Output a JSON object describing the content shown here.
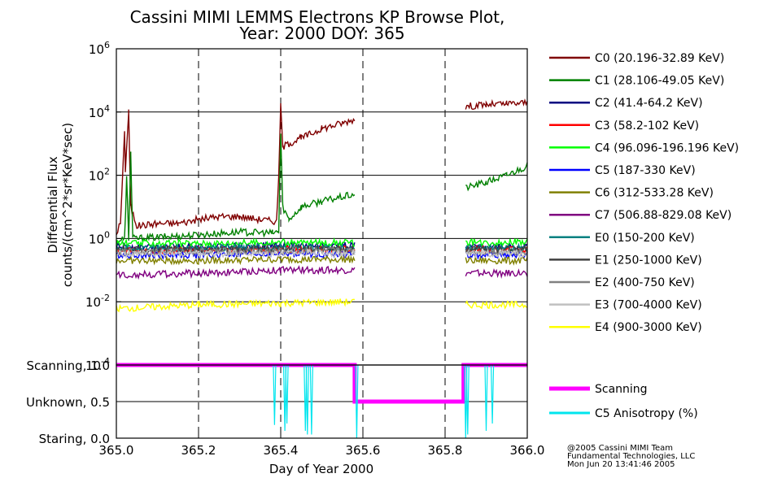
{
  "chart_data": {
    "type": "line",
    "title_line1": "Cassini MIMI LEMMS Electrons KP Browse Plot,",
    "title_line2": "Year: 2000 DOY: 365",
    "xlabel": "Day of Year 2000",
    "ylabel_line1": "Differential Flux",
    "ylabel_line2": "counts/(cm^2*sr*KeV*sec)",
    "xlim": [
      365.0,
      366.0
    ],
    "x_ticks": [
      "365.0",
      "365.2",
      "365.4",
      "365.6",
      "365.8",
      "366.0"
    ],
    "x_tick_values": [
      365.0,
      365.2,
      365.4,
      365.6,
      365.8,
      366.0
    ],
    "log_scale_y": true,
    "ylim": [
      0.0001,
      1000000
    ],
    "y_tick_exponents": [
      "6",
      "4",
      "2",
      "0",
      "-2",
      "-4"
    ],
    "y_tick_values": [
      1000000,
      10000,
      100,
      1,
      0.01,
      0.0001
    ],
    "data_gaps": [
      [
        365.585,
        365.85
      ]
    ],
    "legend_position": "right",
    "series": [
      {
        "name": "C0 (20.196-32.89 KeV)",
        "color": "#800000",
        "points": [
          [
            365.0,
            1.5
          ],
          [
            365.01,
            3
          ],
          [
            365.02,
            2000
          ],
          [
            365.022,
            150
          ],
          [
            365.03,
            10000
          ],
          [
            365.035,
            10
          ],
          [
            365.05,
            2.5
          ],
          [
            365.1,
            3
          ],
          [
            365.15,
            3
          ],
          [
            365.2,
            4
          ],
          [
            365.25,
            5
          ],
          [
            365.3,
            5
          ],
          [
            365.35,
            4
          ],
          [
            365.39,
            3.5
          ],
          [
            365.395,
            100
          ],
          [
            365.4,
            15000
          ],
          [
            365.405,
            800
          ],
          [
            365.42,
            1000
          ],
          [
            365.45,
            1500
          ],
          [
            365.5,
            3000
          ],
          [
            365.55,
            4500
          ],
          [
            365.58,
            6000
          ],
          [
            365.85,
            15000
          ],
          [
            365.9,
            17000
          ],
          [
            365.95,
            18000
          ],
          [
            366.0,
            20000
          ]
        ]
      },
      {
        "name": "C1 (28.106-49.05 KeV)",
        "color": "#008000",
        "points": [
          [
            365.0,
            0.8
          ],
          [
            365.02,
            1
          ],
          [
            365.025,
            80
          ],
          [
            365.03,
            1
          ],
          [
            365.035,
            500
          ],
          [
            365.04,
            1
          ],
          [
            365.1,
            1.1
          ],
          [
            365.2,
            1.3
          ],
          [
            365.3,
            1.6
          ],
          [
            365.38,
            1.5
          ],
          [
            365.395,
            1.6
          ],
          [
            365.4,
            2000
          ],
          [
            365.405,
            10
          ],
          [
            365.42,
            4
          ],
          [
            365.45,
            10
          ],
          [
            365.5,
            15
          ],
          [
            365.58,
            25
          ],
          [
            365.85,
            40
          ],
          [
            365.9,
            60
          ],
          [
            365.95,
            100
          ],
          [
            366.0,
            200
          ]
        ]
      },
      {
        "name": "C2 (41.4-64.2 KeV)",
        "color": "#000080",
        "points": [
          [
            365.0,
            0.55
          ],
          [
            365.2,
            0.55
          ],
          [
            365.4,
            0.6
          ],
          [
            365.58,
            0.6
          ],
          [
            365.85,
            0.55
          ],
          [
            366.0,
            0.55
          ]
        ]
      },
      {
        "name": "C3 (58.2-102 KeV)",
        "color": "#ff0000",
        "points": [
          [
            365.0,
            0.4
          ],
          [
            365.2,
            0.42
          ],
          [
            365.4,
            0.45
          ],
          [
            365.58,
            0.45
          ],
          [
            365.85,
            0.45
          ],
          [
            366.0,
            0.45
          ]
        ]
      },
      {
        "name": "C4 (96.096-196.196 KeV)",
        "color": "#00ff00",
        "points": [
          [
            365.0,
            0.7
          ],
          [
            365.2,
            0.7
          ],
          [
            365.4,
            0.75
          ],
          [
            365.58,
            0.72
          ],
          [
            365.85,
            0.75
          ],
          [
            366.0,
            0.78
          ]
        ]
      },
      {
        "name": "C5 (187-330 KeV)",
        "color": "#0000ff",
        "points": [
          [
            365.0,
            0.3
          ],
          [
            365.2,
            0.3
          ],
          [
            365.4,
            0.33
          ],
          [
            365.58,
            0.32
          ],
          [
            365.85,
            0.3
          ],
          [
            366.0,
            0.3
          ]
        ]
      },
      {
        "name": "C6 (312-533.28 KeV)",
        "color": "#808000",
        "points": [
          [
            365.0,
            0.2
          ],
          [
            365.2,
            0.2
          ],
          [
            365.4,
            0.22
          ],
          [
            365.58,
            0.22
          ],
          [
            365.85,
            0.2
          ],
          [
            366.0,
            0.2
          ]
        ]
      },
      {
        "name": "C7 (506.88-829.08 KeV)",
        "color": "#800080",
        "points": [
          [
            365.0,
            0.07
          ],
          [
            365.2,
            0.08
          ],
          [
            365.4,
            0.1
          ],
          [
            365.58,
            0.1
          ],
          [
            365.85,
            0.08
          ],
          [
            366.0,
            0.08
          ]
        ]
      },
      {
        "name": "E0 (150-200 KeV)",
        "color": "#008080",
        "points": [
          [
            365.0,
            0.5
          ],
          [
            365.2,
            0.5
          ],
          [
            365.4,
            0.52
          ],
          [
            365.58,
            0.5
          ],
          [
            365.85,
            0.5
          ],
          [
            366.0,
            0.5
          ]
        ]
      },
      {
        "name": "E1 (250-1000 KeV)",
        "color": "#404040",
        "points": [
          [
            365.0,
            0.45
          ],
          [
            365.2,
            0.45
          ],
          [
            365.4,
            0.47
          ],
          [
            365.58,
            0.46
          ],
          [
            365.85,
            0.45
          ],
          [
            366.0,
            0.45
          ]
        ]
      },
      {
        "name": "E2 (400-750 KeV)",
        "color": "#808080",
        "points": [
          [
            365.0,
            0.38
          ],
          [
            365.2,
            0.38
          ],
          [
            365.4,
            0.4
          ],
          [
            365.58,
            0.4
          ],
          [
            365.85,
            0.38
          ],
          [
            366.0,
            0.38
          ]
        ]
      },
      {
        "name": "E3 (700-4000 KeV)",
        "color": "#c0c0c0",
        "points": [
          [
            365.0,
            0.33
          ],
          [
            365.2,
            0.33
          ],
          [
            365.4,
            0.35
          ],
          [
            365.58,
            0.35
          ],
          [
            365.85,
            0.33
          ],
          [
            366.0,
            0.33
          ]
        ]
      },
      {
        "name": "E4 (900-3000 KeV)",
        "color": "#ffff00",
        "points": [
          [
            365.0,
            0.006
          ],
          [
            365.2,
            0.008
          ],
          [
            365.4,
            0.009
          ],
          [
            365.58,
            0.01
          ],
          [
            365.85,
            0.008
          ],
          [
            366.0,
            0.008
          ]
        ]
      }
    ],
    "lower_panel": {
      "y_ticks": [
        "Scanning, 1.0",
        "Unknown, 0.5",
        "Staring, 0.0"
      ],
      "y_tick_values": [
        1.0,
        0.5,
        0.0
      ],
      "ylim": [
        0.0,
        1.0
      ],
      "series": [
        {
          "name": "Scanning",
          "color": "#ff00ff",
          "points": [
            [
              365.0,
              1.0
            ],
            [
              365.58,
              1.0
            ],
            [
              365.58,
              0.5
            ],
            [
              365.845,
              0.5
            ],
            [
              365.845,
              1.0
            ],
            [
              366.0,
              1.0
            ]
          ]
        },
        {
          "name": "C5 Anisotropy (%)",
          "color": "#00e5ee",
          "points": [
            [
              365.385,
              0.18
            ],
            [
              365.41,
              0.1
            ],
            [
              365.415,
              0.2
            ],
            [
              365.46,
              0.1
            ],
            [
              365.465,
              0.05
            ],
            [
              365.475,
              0.05
            ],
            [
              365.585,
              0.0
            ],
            [
              365.85,
              0.0
            ],
            [
              365.855,
              0.05
            ],
            [
              365.9,
              0.1
            ],
            [
              365.915,
              0.2
            ]
          ]
        }
      ]
    },
    "credits": [
      "@2005 Cassini MIMI Team",
      "Fundamental Technologies, LLC",
      "Mon Jun 20 13:41:46 2005"
    ]
  }
}
